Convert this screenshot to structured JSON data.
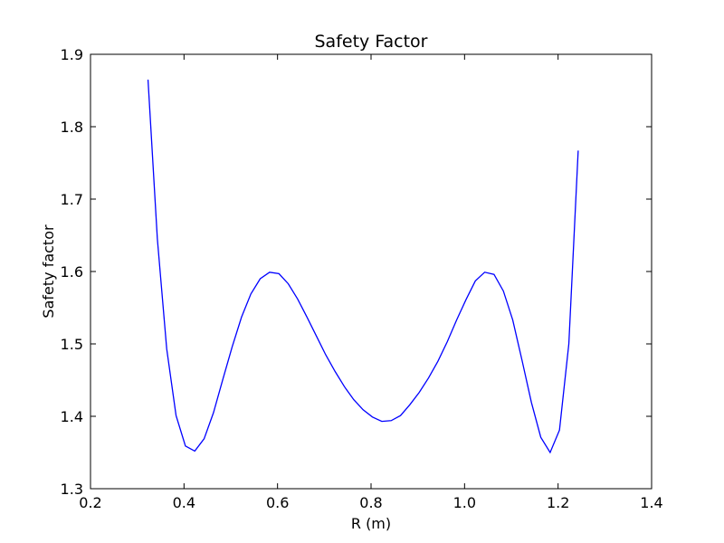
{
  "chart_data": {
    "type": "line",
    "title": "Safety Factor",
    "xlabel": "R (m)",
    "ylabel": "Safety factor",
    "xlim": [
      0.2,
      1.4
    ],
    "ylim": [
      1.3,
      1.9
    ],
    "x_ticks": [
      0.2,
      0.4,
      0.6,
      0.8,
      1.0,
      1.2,
      1.4
    ],
    "x_tick_labels": [
      "0.2",
      "0.4",
      "0.6",
      "0.8",
      "1.0",
      "1.2",
      "1.4"
    ],
    "y_ticks": [
      1.3,
      1.4,
      1.5,
      1.6,
      1.7,
      1.8,
      1.9
    ],
    "y_tick_labels": [
      "1.3",
      "1.4",
      "1.5",
      "1.6",
      "1.7",
      "1.8",
      "1.9"
    ],
    "grid": false,
    "series": [
      {
        "color": "#0000ff",
        "x": [
          0.323,
          0.343,
          0.363,
          0.383,
          0.403,
          0.423,
          0.443,
          0.463,
          0.483,
          0.503,
          0.523,
          0.543,
          0.563,
          0.583,
          0.603,
          0.623,
          0.643,
          0.663,
          0.683,
          0.703,
          0.723,
          0.743,
          0.763,
          0.783,
          0.803,
          0.823,
          0.843,
          0.863,
          0.883,
          0.903,
          0.923,
          0.943,
          0.963,
          0.983,
          1.003,
          1.023,
          1.043,
          1.063,
          1.083,
          1.103,
          1.123,
          1.143,
          1.163,
          1.183,
          1.203,
          1.223,
          1.243
        ],
        "y": [
          1.865,
          1.645,
          1.493,
          1.401,
          1.359,
          1.352,
          1.369,
          1.405,
          1.451,
          1.496,
          1.537,
          1.569,
          1.59,
          1.599,
          1.597,
          1.583,
          1.562,
          1.537,
          1.511,
          1.485,
          1.462,
          1.441,
          1.423,
          1.409,
          1.399,
          1.393,
          1.394,
          1.401,
          1.416,
          1.433,
          1.453,
          1.476,
          1.503,
          1.533,
          1.561,
          1.587,
          1.599,
          1.596,
          1.573,
          1.533,
          1.477,
          1.419,
          1.371,
          1.35,
          1.381,
          1.5,
          1.767
        ]
      }
    ]
  }
}
